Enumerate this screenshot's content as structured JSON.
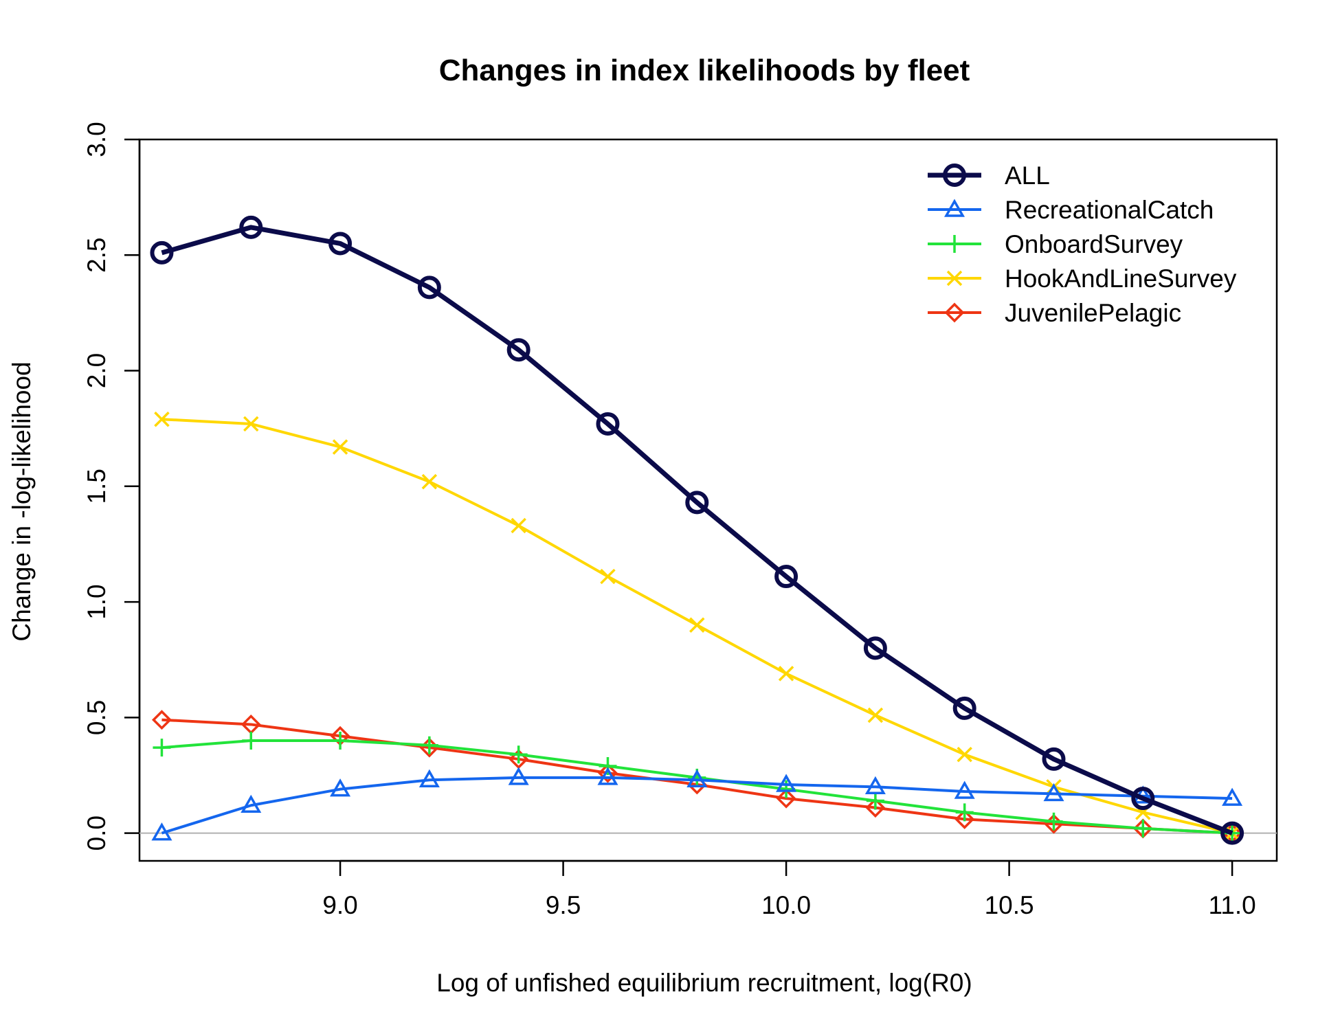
{
  "chart_data": {
    "type": "line",
    "title": "Changes in index likelihoods by fleet",
    "xlabel": "Log of unfished equilibrium recruitment, log(R0)",
    "ylabel": "Change in -log-likelihood",
    "xlim": [
      8.55,
      11.1
    ],
    "ylim": [
      -0.12,
      3.0
    ],
    "xticks": [
      "9.0",
      "9.5",
      "10.0",
      "10.5",
      "11.0"
    ],
    "yticks": [
      "0.0",
      "0.5",
      "1.0",
      "1.5",
      "2.0",
      "2.5",
      "3.0"
    ],
    "reference_line": 0,
    "grid": false,
    "legend_position": "top-right",
    "x": [
      8.6,
      8.8,
      9.0,
      9.2,
      9.4,
      9.6,
      9.8,
      10.0,
      10.2,
      10.4,
      10.6,
      10.8,
      11.0
    ],
    "series": [
      {
        "name": "ALL",
        "color": "#0b0b4a",
        "marker": "circle",
        "bold": true,
        "values": [
          2.51,
          2.62,
          2.55,
          2.36,
          2.09,
          1.77,
          1.43,
          1.11,
          0.8,
          0.54,
          0.32,
          0.15,
          0.0
        ]
      },
      {
        "name": "RecreationalCatch",
        "color": "#1466ee",
        "marker": "triangle",
        "values": [
          0.0,
          0.12,
          0.19,
          0.23,
          0.24,
          0.24,
          0.23,
          0.21,
          0.2,
          0.18,
          0.17,
          0.16,
          0.15
        ]
      },
      {
        "name": "OnboardSurvey",
        "color": "#22e33a",
        "marker": "plus",
        "values": [
          0.37,
          0.4,
          0.4,
          0.38,
          0.34,
          0.29,
          0.24,
          0.19,
          0.14,
          0.09,
          0.05,
          0.02,
          0.0
        ]
      },
      {
        "name": "HookAndLineSurvey",
        "color": "#ffd700",
        "marker": "cross",
        "values": [
          1.79,
          1.77,
          1.67,
          1.52,
          1.33,
          1.11,
          0.9,
          0.69,
          0.51,
          0.34,
          0.2,
          0.09,
          0.0
        ]
      },
      {
        "name": "JuvenilePelagic",
        "color": "#ee3514",
        "marker": "diamond",
        "values": [
          0.49,
          0.47,
          0.42,
          0.37,
          0.32,
          0.26,
          0.21,
          0.15,
          0.11,
          0.06,
          0.04,
          0.02,
          0.0
        ]
      }
    ]
  }
}
